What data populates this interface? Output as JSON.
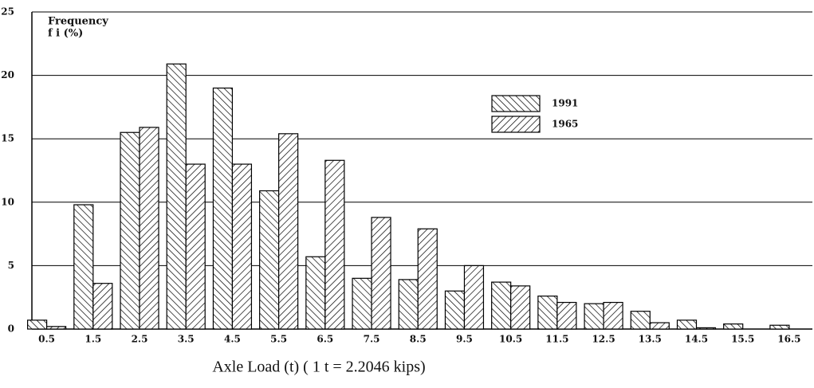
{
  "chart_data": {
    "type": "bar",
    "x_label": "Axle Load (t) ( 1 t = 2.2046 kips)",
    "y_label": "Frequency",
    "y_sublabel": "f i (%)",
    "categories": [
      "0.5",
      "1.5",
      "2.5",
      "3.5",
      "4.5",
      "5.5",
      "6.5",
      "7.5",
      "8.5",
      "9.5",
      "10.5",
      "11.5",
      "12.5",
      "13.5",
      "14.5",
      "15.5",
      "16.5"
    ],
    "series": [
      {
        "name": "1991",
        "color": "#000000",
        "hatch": "backslash",
        "values": [
          0.7,
          9.8,
          15.5,
          20.9,
          19.0,
          10.9,
          5.7,
          4.0,
          3.9,
          3.0,
          3.7,
          2.6,
          2.0,
          1.4,
          0.7,
          0.4,
          0.3
        ]
      },
      {
        "name": "1965",
        "color": "#000000",
        "hatch": "slash",
        "values": [
          0.2,
          3.6,
          15.9,
          13.0,
          13.0,
          15.4,
          13.3,
          8.8,
          7.9,
          5.0,
          3.4,
          2.1,
          2.1,
          0.5,
          0.1,
          0,
          0
        ]
      }
    ],
    "ylim": [
      0,
      25
    ],
    "yticks": [
      0,
      5,
      10,
      15,
      20,
      25
    ],
    "grid": true
  }
}
